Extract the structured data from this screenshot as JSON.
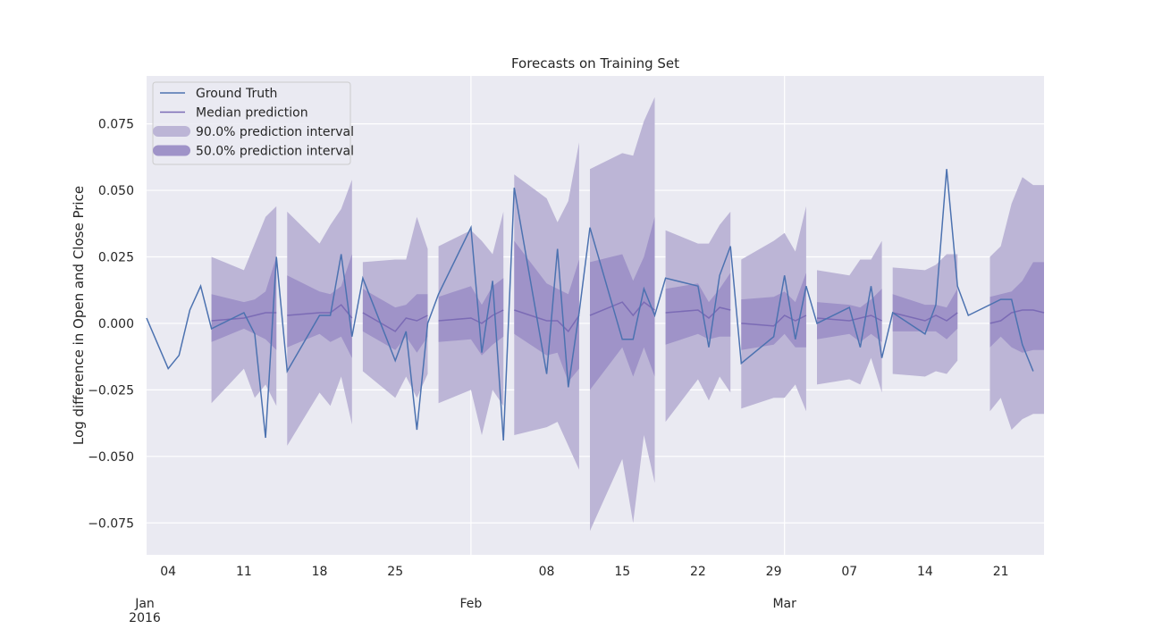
{
  "chart_data": {
    "type": "line",
    "title": "Forecasts on Training Set",
    "xlabel": "",
    "ylabel": "Log difference in Open and Close Price",
    "xlim": [
      "2016-01-02",
      "2016-03-25"
    ],
    "ylim": [
      -0.087,
      0.093
    ],
    "yticks": [
      -0.075,
      -0.05,
      -0.025,
      0.0,
      0.025,
      0.05,
      0.075
    ],
    "ytick_labels": [
      "−0.075",
      "−0.050",
      "−0.025",
      "0.000",
      "0.025",
      "0.050",
      "0.075"
    ],
    "xticks_minor": [
      {
        "date": "2016-01-04",
        "label": "04"
      },
      {
        "date": "2016-01-11",
        "label": "11"
      },
      {
        "date": "2016-01-18",
        "label": "18"
      },
      {
        "date": "2016-01-25",
        "label": "25"
      },
      {
        "date": "2016-02-08",
        "label": "08"
      },
      {
        "date": "2016-02-15",
        "label": "15"
      },
      {
        "date": "2016-02-22",
        "label": "22"
      },
      {
        "date": "2016-02-29",
        "label": "29"
      },
      {
        "date": "2016-03-07",
        "label": "07"
      },
      {
        "date": "2016-03-14",
        "label": "14"
      },
      {
        "date": "2016-03-21",
        "label": "21"
      }
    ],
    "xticks_major": [
      {
        "date": "2016-01-01",
        "label": "Jan\n2016"
      },
      {
        "date": "2016-02-01",
        "label": "Feb"
      },
      {
        "date": "2016-03-01",
        "label": "Mar"
      }
    ],
    "grid": true,
    "legend_position": "top-left",
    "legend": [
      {
        "label": "Ground Truth",
        "kind": "line",
        "color": "#4c72b0"
      },
      {
        "label": "Median prediction",
        "kind": "line",
        "color": "#7b6bb5"
      },
      {
        "label": "90.0% prediction interval",
        "kind": "band",
        "color": "#bcb5d6"
      },
      {
        "label": "50.0% prediction interval",
        "kind": "band",
        "color": "#9f93c8"
      }
    ],
    "colors": {
      "plot_background": "#eaeaf2",
      "grid": "#ffffff",
      "ground_truth": "#4c72b0",
      "median": "#7b6bb5",
      "band90": "#bcb5d6",
      "band50": "#9f93c8"
    },
    "ground_truth": {
      "name": "Ground Truth",
      "points": [
        [
          "2016-01-02",
          0.002
        ],
        [
          "2016-01-04",
          -0.017
        ],
        [
          "2016-01-05",
          -0.012
        ],
        [
          "2016-01-06",
          0.005
        ],
        [
          "2016-01-07",
          0.014
        ],
        [
          "2016-01-08",
          -0.002
        ],
        [
          "2016-01-11",
          0.004
        ],
        [
          "2016-01-12",
          -0.004
        ],
        [
          "2016-01-13",
          -0.043
        ],
        [
          "2016-01-14",
          0.025
        ],
        [
          "2016-01-15",
          -0.018
        ],
        [
          "2016-01-18",
          0.003
        ],
        [
          "2016-01-19",
          0.003
        ],
        [
          "2016-01-20",
          0.026
        ],
        [
          "2016-01-21",
          -0.005
        ],
        [
          "2016-01-22",
          0.017
        ],
        [
          "2016-01-25",
          -0.014
        ],
        [
          "2016-01-26",
          -0.003
        ],
        [
          "2016-01-27",
          -0.04
        ],
        [
          "2016-01-28",
          0.0
        ],
        [
          "2016-01-29",
          0.011
        ],
        [
          "2016-02-01",
          0.036
        ],
        [
          "2016-02-02",
          -0.011
        ],
        [
          "2016-02-03",
          0.016
        ],
        [
          "2016-02-04",
          -0.044
        ],
        [
          "2016-02-05",
          0.051
        ],
        [
          "2016-02-08",
          -0.019
        ],
        [
          "2016-02-09",
          0.028
        ],
        [
          "2016-02-10",
          -0.024
        ],
        [
          "2016-02-11",
          0.004
        ],
        [
          "2016-02-12",
          0.036
        ],
        [
          "2016-02-15",
          -0.006
        ],
        [
          "2016-02-16",
          -0.006
        ],
        [
          "2016-02-17",
          0.013
        ],
        [
          "2016-02-18",
          0.003
        ],
        [
          "2016-02-19",
          0.017
        ],
        [
          "2016-02-22",
          0.014
        ],
        [
          "2016-02-23",
          -0.009
        ],
        [
          "2016-02-24",
          0.018
        ],
        [
          "2016-02-25",
          0.029
        ],
        [
          "2016-02-26",
          -0.015
        ],
        [
          "2016-02-29",
          -0.005
        ],
        [
          "2016-03-01",
          0.018
        ],
        [
          "2016-03-02",
          -0.006
        ],
        [
          "2016-03-03",
          0.014
        ],
        [
          "2016-03-04",
          0.0
        ],
        [
          "2016-03-07",
          0.006
        ],
        [
          "2016-03-08",
          -0.009
        ],
        [
          "2016-03-09",
          0.014
        ],
        [
          "2016-03-10",
          -0.013
        ],
        [
          "2016-03-11",
          0.004
        ],
        [
          "2016-03-14",
          -0.004
        ],
        [
          "2016-03-15",
          0.007
        ],
        [
          "2016-03-16",
          0.058
        ],
        [
          "2016-03-17",
          0.014
        ],
        [
          "2016-03-18",
          0.003
        ],
        [
          "2016-03-21",
          0.009
        ],
        [
          "2016-03-22",
          0.009
        ],
        [
          "2016-03-23",
          -0.008
        ],
        [
          "2016-03-24",
          -0.018
        ]
      ]
    },
    "forecasts": [
      {
        "dates": [
          "2016-01-08",
          "2016-01-11",
          "2016-01-12",
          "2016-01-13",
          "2016-01-14"
        ],
        "median": [
          0.001,
          0.002,
          0.003,
          0.004,
          0.004
        ],
        "p05": [
          -0.03,
          -0.017,
          -0.028,
          -0.023,
          -0.031
        ],
        "p25": [
          -0.007,
          -0.002,
          -0.004,
          -0.006,
          -0.01
        ],
        "p75": [
          0.011,
          0.008,
          0.009,
          0.012,
          0.025
        ],
        "p95": [
          0.025,
          0.02,
          0.03,
          0.04,
          0.044
        ]
      },
      {
        "dates": [
          "2016-01-15",
          "2016-01-18",
          "2016-01-19",
          "2016-01-20",
          "2016-01-21"
        ],
        "median": [
          0.003,
          0.004,
          0.004,
          0.007,
          0.002
        ],
        "p05": [
          -0.046,
          -0.026,
          -0.031,
          -0.02,
          -0.038
        ],
        "p25": [
          -0.009,
          -0.004,
          -0.007,
          -0.005,
          -0.013
        ],
        "p75": [
          0.018,
          0.012,
          0.011,
          0.014,
          0.026
        ],
        "p95": [
          0.042,
          0.03,
          0.037,
          0.043,
          0.054
        ]
      },
      {
        "dates": [
          "2016-01-22",
          "2016-01-25",
          "2016-01-26",
          "2016-01-27",
          "2016-01-28"
        ],
        "median": [
          0.004,
          -0.003,
          0.002,
          0.001,
          0.003
        ],
        "p05": [
          -0.018,
          -0.028,
          -0.02,
          -0.028,
          -0.019
        ],
        "p25": [
          -0.003,
          -0.01,
          -0.005,
          -0.011,
          -0.005
        ],
        "p75": [
          0.013,
          0.006,
          0.007,
          0.011,
          0.011
        ],
        "p95": [
          0.023,
          0.024,
          0.024,
          0.04,
          0.028
        ]
      },
      {
        "dates": [
          "2016-01-29",
          "2016-02-01",
          "2016-02-02",
          "2016-02-03",
          "2016-02-04"
        ],
        "median": [
          0.001,
          0.002,
          0.0,
          0.003,
          0.005
        ],
        "p05": [
          -0.03,
          -0.025,
          -0.042,
          -0.025,
          -0.031
        ],
        "p25": [
          -0.007,
          -0.006,
          -0.012,
          -0.008,
          -0.005
        ],
        "p75": [
          0.01,
          0.014,
          0.007,
          0.014,
          0.017
        ],
        "p95": [
          0.029,
          0.035,
          0.031,
          0.026,
          0.042
        ]
      },
      {
        "dates": [
          "2016-02-05",
          "2016-02-08",
          "2016-02-09",
          "2016-02-10",
          "2016-02-11"
        ],
        "median": [
          0.005,
          0.001,
          0.001,
          -0.003,
          0.003
        ],
        "p05": [
          -0.042,
          -0.039,
          -0.037,
          -0.046,
          -0.055
        ],
        "p25": [
          -0.004,
          -0.012,
          -0.011,
          -0.022,
          -0.017
        ],
        "p75": [
          0.031,
          0.015,
          0.013,
          0.011,
          0.024
        ],
        "p95": [
          0.056,
          0.047,
          0.038,
          0.046,
          0.068
        ]
      },
      {
        "dates": [
          "2016-02-12",
          "2016-02-15",
          "2016-02-16",
          "2016-02-17",
          "2016-02-18"
        ],
        "median": [
          0.003,
          0.008,
          0.003,
          0.008,
          0.005
        ],
        "p05": [
          -0.078,
          -0.051,
          -0.075,
          -0.042,
          -0.06
        ],
        "p25": [
          -0.025,
          -0.009,
          -0.02,
          -0.009,
          -0.02
        ],
        "p75": [
          0.023,
          0.026,
          0.016,
          0.025,
          0.04
        ],
        "p95": [
          0.058,
          0.064,
          0.063,
          0.076,
          0.085
        ]
      },
      {
        "dates": [
          "2016-02-19",
          "2016-02-22",
          "2016-02-23",
          "2016-02-24",
          "2016-02-25"
        ],
        "median": [
          0.004,
          0.005,
          0.002,
          0.006,
          0.005
        ],
        "p05": [
          -0.037,
          -0.021,
          -0.029,
          -0.02,
          -0.026
        ],
        "p25": [
          -0.008,
          -0.004,
          -0.006,
          -0.005,
          -0.005
        ],
        "p75": [
          0.013,
          0.015,
          0.008,
          0.013,
          0.019
        ],
        "p95": [
          0.035,
          0.03,
          0.03,
          0.037,
          0.042
        ]
      },
      {
        "dates": [
          "2016-02-26",
          "2016-02-29",
          "2016-03-01",
          "2016-03-02",
          "2016-03-03"
        ],
        "median": [
          0.0,
          -0.001,
          0.003,
          0.001,
          0.003
        ],
        "p05": [
          -0.032,
          -0.028,
          -0.028,
          -0.023,
          -0.033
        ],
        "p25": [
          -0.01,
          -0.008,
          -0.004,
          -0.009,
          -0.009
        ],
        "p75": [
          0.009,
          0.01,
          0.012,
          0.008,
          0.019
        ],
        "p95": [
          0.024,
          0.031,
          0.034,
          0.027,
          0.044
        ]
      },
      {
        "dates": [
          "2016-03-04",
          "2016-03-07",
          "2016-03-08",
          "2016-03-09",
          "2016-03-10"
        ],
        "median": [
          0.002,
          0.001,
          0.002,
          0.003,
          0.001
        ],
        "p05": [
          -0.023,
          -0.021,
          -0.023,
          -0.013,
          -0.026
        ],
        "p25": [
          -0.006,
          -0.004,
          -0.007,
          -0.004,
          -0.007
        ],
        "p75": [
          0.008,
          0.007,
          0.006,
          0.009,
          0.013
        ],
        "p95": [
          0.02,
          0.018,
          0.024,
          0.024,
          0.031
        ]
      },
      {
        "dates": [
          "2016-03-11",
          "2016-03-14",
          "2016-03-15",
          "2016-03-16",
          "2016-03-17"
        ],
        "median": [
          0.004,
          0.001,
          0.003,
          0.001,
          0.004
        ],
        "p05": [
          -0.019,
          -0.02,
          -0.018,
          -0.019,
          -0.014
        ],
        "p25": [
          -0.003,
          -0.003,
          -0.003,
          -0.006,
          -0.002
        ],
        "p75": [
          0.011,
          0.007,
          0.007,
          0.006,
          0.013
        ],
        "p95": [
          0.021,
          0.02,
          0.022,
          0.026,
          0.026
        ]
      },
      {
        "dates": [
          "2016-03-20",
          "2016-03-21",
          "2016-03-22",
          "2016-03-23",
          "2016-03-24",
          "2016-03-25"
        ],
        "median": [
          0.0,
          0.001,
          0.004,
          0.005,
          0.005,
          0.004
        ],
        "p05": [
          -0.033,
          -0.028,
          -0.04,
          -0.036,
          -0.034,
          -0.034
        ],
        "p25": [
          -0.009,
          -0.005,
          -0.009,
          -0.011,
          -0.01,
          -0.01
        ],
        "p75": [
          0.01,
          0.011,
          0.012,
          0.016,
          0.023,
          0.023
        ],
        "p95": [
          0.025,
          0.029,
          0.045,
          0.055,
          0.052,
          0.052
        ]
      }
    ]
  }
}
